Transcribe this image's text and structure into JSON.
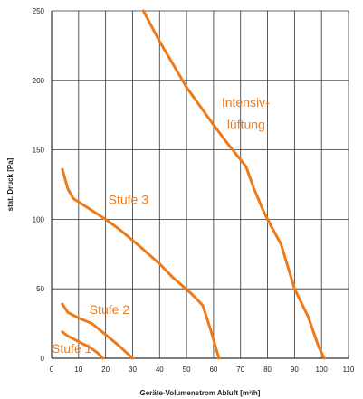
{
  "chart_data": {
    "type": "line",
    "title": "",
    "xlabel": "Geräte-Volumenstrom Abluft [m³/h]",
    "ylabel": "stat. Druck [Pa]",
    "xlim": [
      0,
      110
    ],
    "ylim": [
      0,
      250
    ],
    "x_ticks": [
      "0",
      "10",
      "20",
      "30",
      "40",
      "50",
      "60",
      "70",
      "80",
      "90",
      "100",
      "110"
    ],
    "y_ticks": [
      "0",
      "50",
      "100",
      "150",
      "200",
      "250"
    ],
    "grid": true,
    "line_color": "#ee7a1a",
    "series": [
      {
        "name": "Stufe 1",
        "points": [
          [
            4,
            19
          ],
          [
            6,
            16
          ],
          [
            10,
            12
          ],
          [
            14,
            8
          ],
          [
            17,
            4
          ],
          [
            19,
            0
          ]
        ]
      },
      {
        "name": "Stufe 2",
        "points": [
          [
            4,
            39
          ],
          [
            6,
            33
          ],
          [
            10,
            29
          ],
          [
            15,
            25
          ],
          [
            20,
            17
          ],
          [
            25,
            9
          ],
          [
            30,
            0
          ]
        ]
      },
      {
        "name": "Stufe 3",
        "points": [
          [
            4,
            136
          ],
          [
            6,
            122
          ],
          [
            8,
            115
          ],
          [
            12,
            110
          ],
          [
            20,
            100
          ],
          [
            25,
            93
          ],
          [
            33,
            80
          ],
          [
            40,
            68
          ],
          [
            45,
            58
          ],
          [
            52,
            46
          ],
          [
            56,
            38
          ],
          [
            59,
            20
          ],
          [
            62,
            0
          ]
        ]
      },
      {
        "name": "Intensiv-lüftung",
        "points": [
          [
            34,
            250
          ],
          [
            40,
            228
          ],
          [
            50,
            195
          ],
          [
            60,
            168
          ],
          [
            65,
            155
          ],
          [
            72,
            138
          ],
          [
            75,
            122
          ],
          [
            78,
            108
          ],
          [
            80,
            100
          ],
          [
            85,
            82
          ],
          [
            90,
            50
          ],
          [
            95,
            30
          ],
          [
            99,
            8
          ],
          [
            101,
            0
          ]
        ]
      }
    ],
    "labels": [
      {
        "text": "Stufe 1",
        "x": 0,
        "y": 4
      },
      {
        "text": "Stufe 2",
        "x": 14,
        "y": 32
      },
      {
        "text": "Stufe 3",
        "x": 21,
        "y": 111
      },
      {
        "text": "Intensiv-",
        "x": 63,
        "y": 181
      },
      {
        "text": "lüftung",
        "x": 65,
        "y": 165
      }
    ]
  }
}
